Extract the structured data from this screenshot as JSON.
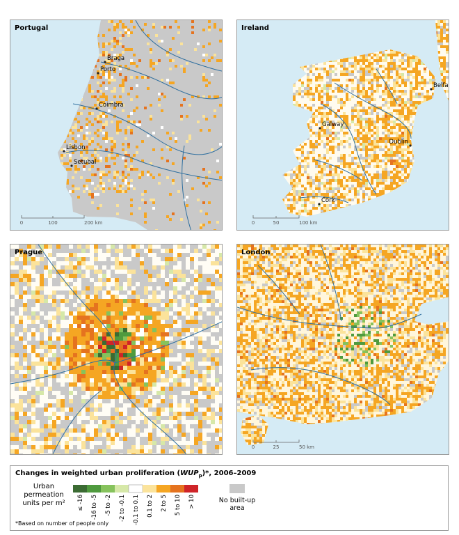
{
  "panels": [
    {
      "title": "Portugal",
      "places": [
        "Braga",
        "Porto",
        "Coimbra",
        "Lisbon",
        "Setubal"
      ],
      "scale": [
        "0",
        "100",
        "200 km"
      ]
    },
    {
      "title": "Ireland",
      "places": [
        "Belfast",
        "Galway",
        "Dublin",
        "Cork"
      ],
      "scale": [
        "0",
        "50",
        "100 km"
      ]
    },
    {
      "title": "Prague"
    },
    {
      "title": "London",
      "scale": [
        "0",
        "25",
        "50 km"
      ]
    }
  ],
  "legend": {
    "title_start": "Changes in weighted urban proliferation (",
    "title_symbol": "WUP",
    "title_subscript": "p",
    "title_end": ")*, 2006–2009",
    "units_label": "Urban permeation units per m²",
    "classes": [
      {
        "label": "≤ -16",
        "color": "#3b6b33"
      },
      {
        "label": "-16 to -5",
        "color": "#4f9a3e"
      },
      {
        "label": "-5 to -2",
        "color": "#86c25c"
      },
      {
        "label": "-2 to -0.1",
        "color": "#d6e8a8"
      },
      {
        "label": "-0.1 to 0.1",
        "color": "#ffffff"
      },
      {
        "label": "0.1 to 2",
        "color": "#fbe39b"
      },
      {
        "label": "2 to 5",
        "color": "#f5a623"
      },
      {
        "label": "5 to 10",
        "color": "#e5731f"
      },
      {
        "label": "> 10",
        "color": "#cf2428"
      }
    ],
    "no_data": {
      "label": "No built-up area",
      "color": "#c9c9c9"
    },
    "footnote": "*Based on number of people only"
  }
}
